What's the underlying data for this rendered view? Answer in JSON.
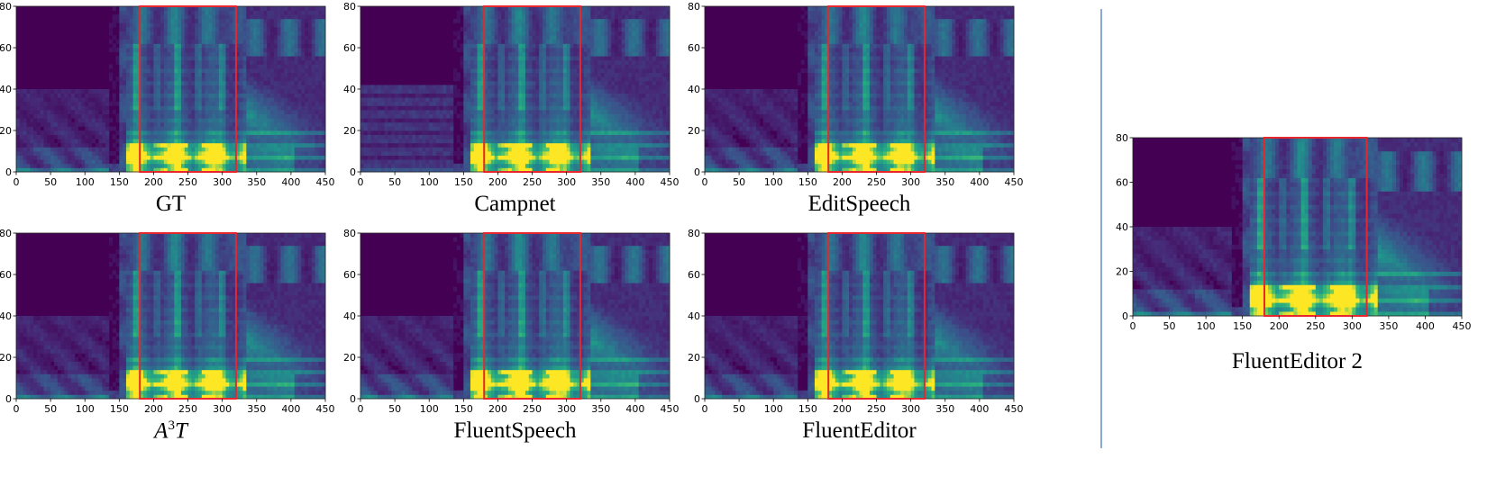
{
  "colors": {
    "background": "#440154",
    "mid_low": "#31688e",
    "mid": "#21908d",
    "high": "#35b779",
    "peak": "#fde725",
    "highlight_box": "#e8262d",
    "divider": "#8aa8d8"
  },
  "chart_data": [
    {
      "type": "heatmap",
      "id": "gt",
      "title": "GT",
      "title_parts": null,
      "xlim": [
        0,
        450
      ],
      "ylim": [
        0,
        80
      ],
      "xticks": [
        0,
        50,
        100,
        150,
        200,
        250,
        300,
        350,
        400,
        450
      ],
      "yticks": [
        0,
        20,
        40,
        60,
        80
      ],
      "xtick_labels": [
        "0",
        "50",
        "100",
        "150",
        "200",
        "250",
        "300",
        "350",
        "400",
        "450"
      ],
      "ytick_labels": [
        "0",
        "20",
        "40",
        "60",
        "80"
      ],
      "highlight_region_x": [
        180,
        320
      ],
      "grid": false,
      "variant": "gt"
    },
    {
      "type": "heatmap",
      "id": "campnet",
      "title": "Campnet",
      "title_parts": null,
      "xlim": [
        0,
        450
      ],
      "ylim": [
        0,
        80
      ],
      "xticks": [
        0,
        50,
        100,
        150,
        200,
        250,
        300,
        350,
        400,
        450
      ],
      "yticks": [
        0,
        20,
        40,
        60,
        80
      ],
      "xtick_labels": [
        "0",
        "50",
        "100",
        "150",
        "200",
        "250",
        "300",
        "350",
        "400",
        "450"
      ],
      "ytick_labels": [
        "0",
        "20",
        "40",
        "60",
        "80"
      ],
      "highlight_region_x": [
        180,
        320
      ],
      "grid": false,
      "variant": "campnet"
    },
    {
      "type": "heatmap",
      "id": "editspeech",
      "title": "EditSpeech",
      "title_parts": null,
      "xlim": [
        0,
        450
      ],
      "ylim": [
        0,
        80
      ],
      "xticks": [
        0,
        50,
        100,
        150,
        200,
        250,
        300,
        350,
        400,
        450
      ],
      "yticks": [
        0,
        20,
        40,
        60,
        80
      ],
      "xtick_labels": [
        "0",
        "50",
        "100",
        "150",
        "200",
        "250",
        "300",
        "350",
        "400",
        "450"
      ],
      "ytick_labels": [
        "0",
        "20",
        "40",
        "60",
        "80"
      ],
      "highlight_region_x": [
        180,
        320
      ],
      "grid": false,
      "variant": "editspeech"
    },
    {
      "type": "heatmap",
      "id": "a3t",
      "title": "A3T",
      "title_parts": {
        "base": "A",
        "sup": "3",
        "tail": "T"
      },
      "xlim": [
        0,
        450
      ],
      "ylim": [
        0,
        80
      ],
      "xticks": [
        0,
        50,
        100,
        150,
        200,
        250,
        300,
        350,
        400,
        450
      ],
      "yticks": [
        0,
        20,
        40,
        60,
        80
      ],
      "xtick_labels": [
        "0",
        "50",
        "100",
        "150",
        "200",
        "250",
        "300",
        "350",
        "400",
        "450"
      ],
      "ytick_labels": [
        "0",
        "20",
        "40",
        "60",
        "80"
      ],
      "highlight_region_x": [
        180,
        320
      ],
      "grid": false,
      "variant": "a3t"
    },
    {
      "type": "heatmap",
      "id": "fluentspeech",
      "title": "FluentSpeech",
      "title_parts": null,
      "xlim": [
        0,
        450
      ],
      "ylim": [
        0,
        80
      ],
      "xticks": [
        0,
        50,
        100,
        150,
        200,
        250,
        300,
        350,
        400,
        450
      ],
      "yticks": [
        0,
        20,
        40,
        60,
        80
      ],
      "xtick_labels": [
        "0",
        "50",
        "100",
        "150",
        "200",
        "250",
        "300",
        "350",
        "400",
        "450"
      ],
      "ytick_labels": [
        "0",
        "20",
        "40",
        "60",
        "80"
      ],
      "highlight_region_x": [
        180,
        320
      ],
      "grid": false,
      "variant": "fluentspeech"
    },
    {
      "type": "heatmap",
      "id": "fluenteditor",
      "title": "FluentEditor",
      "title_parts": null,
      "xlim": [
        0,
        450
      ],
      "ylim": [
        0,
        80
      ],
      "xticks": [
        0,
        50,
        100,
        150,
        200,
        250,
        300,
        350,
        400,
        450
      ],
      "yticks": [
        0,
        20,
        40,
        60,
        80
      ],
      "xtick_labels": [
        "0",
        "50",
        "100",
        "150",
        "200",
        "250",
        "300",
        "350",
        "400",
        "450"
      ],
      "ytick_labels": [
        "0",
        "20",
        "40",
        "60",
        "80"
      ],
      "highlight_region_x": [
        180,
        320
      ],
      "grid": false,
      "variant": "fluenteditor"
    },
    {
      "type": "heatmap",
      "id": "fluenteditor2",
      "title": "FluentEditor 2",
      "title_parts": null,
      "xlim": [
        0,
        450
      ],
      "ylim": [
        0,
        80
      ],
      "xticks": [
        0,
        50,
        100,
        150,
        200,
        250,
        300,
        350,
        400,
        450
      ],
      "yticks": [
        0,
        20,
        40,
        60,
        80
      ],
      "xtick_labels": [
        "0",
        "50",
        "100",
        "150",
        "200",
        "250",
        "300",
        "350",
        "400",
        "450"
      ],
      "ytick_labels": [
        "0",
        "20",
        "40",
        "60",
        "80"
      ],
      "highlight_region_x": [
        180,
        320
      ],
      "grid": false,
      "variant": "fluenteditor2"
    }
  ]
}
